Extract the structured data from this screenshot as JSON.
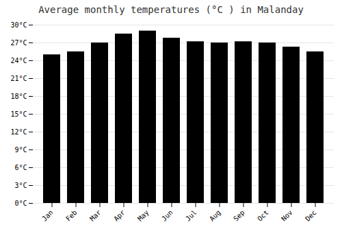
{
  "chart_data": {
    "type": "bar",
    "title": "Average monthly temperatures (°C ) in Malanday",
    "categories": [
      "Jan",
      "Feb",
      "Mar",
      "Apr",
      "May",
      "Jun",
      "Jul",
      "Aug",
      "Sep",
      "Oct",
      "Nov",
      "Dec"
    ],
    "values": [
      25.0,
      25.5,
      27.0,
      28.5,
      29.0,
      27.8,
      27.2,
      27.0,
      27.2,
      27.0,
      26.3,
      25.5
    ],
    "ylim": [
      0,
      30
    ],
    "yticks": [
      {
        "value": 0,
        "label": "0°C"
      },
      {
        "value": 3,
        "label": "3°C"
      },
      {
        "value": 6,
        "label": "6°C"
      },
      {
        "value": 9,
        "label": "9°C"
      },
      {
        "value": 12,
        "label": "12°C"
      },
      {
        "value": 15,
        "label": "15°C"
      },
      {
        "value": 18,
        "label": "18°C"
      },
      {
        "value": 21,
        "label": "21°C"
      },
      {
        "value": 24,
        "label": "24°C"
      },
      {
        "value": 27,
        "label": "27°C"
      },
      {
        "value": 30,
        "label": "30°C"
      }
    ],
    "grid": true
  }
}
